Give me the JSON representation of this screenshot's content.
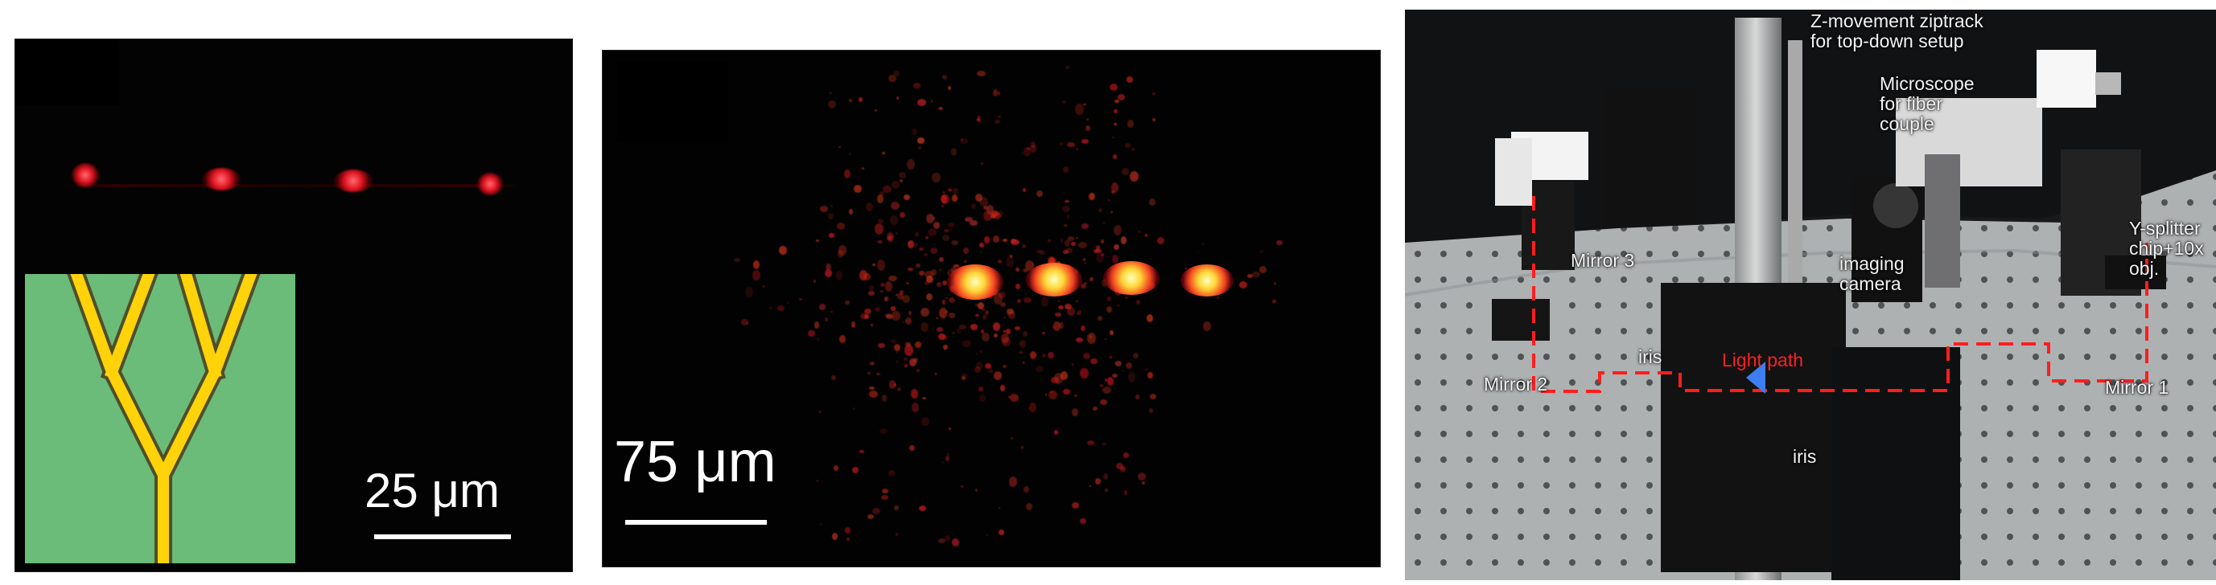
{
  "figure": {
    "panels": [
      {
        "id": "left",
        "scale_bar_label": "25 μm"
      },
      {
        "id": "middle",
        "scale_bar_label": "75 μm"
      },
      {
        "id": "right",
        "labels": {
          "z_movement": "Z-movement ziptrack\nfor top-down setup",
          "microscope": "Microscope\nfor fiber\ncouple",
          "y_splitter": "Y-splitter\nchip+10x\nobj.",
          "mirror3": "Mirror 3",
          "imaging_camera": "imaging\ncamera",
          "iris_left": "iris",
          "light_path": "Light path",
          "mirror2": "Mirror 2",
          "iris_bottom": "iris",
          "mirror1": "Mirror 1"
        }
      }
    ]
  },
  "colors": {
    "schematic_background": "#6bbb79",
    "schematic_waveguide": "#ffd20a",
    "light_path": "#ff1e1e",
    "arrow": "#3d7ef0"
  }
}
